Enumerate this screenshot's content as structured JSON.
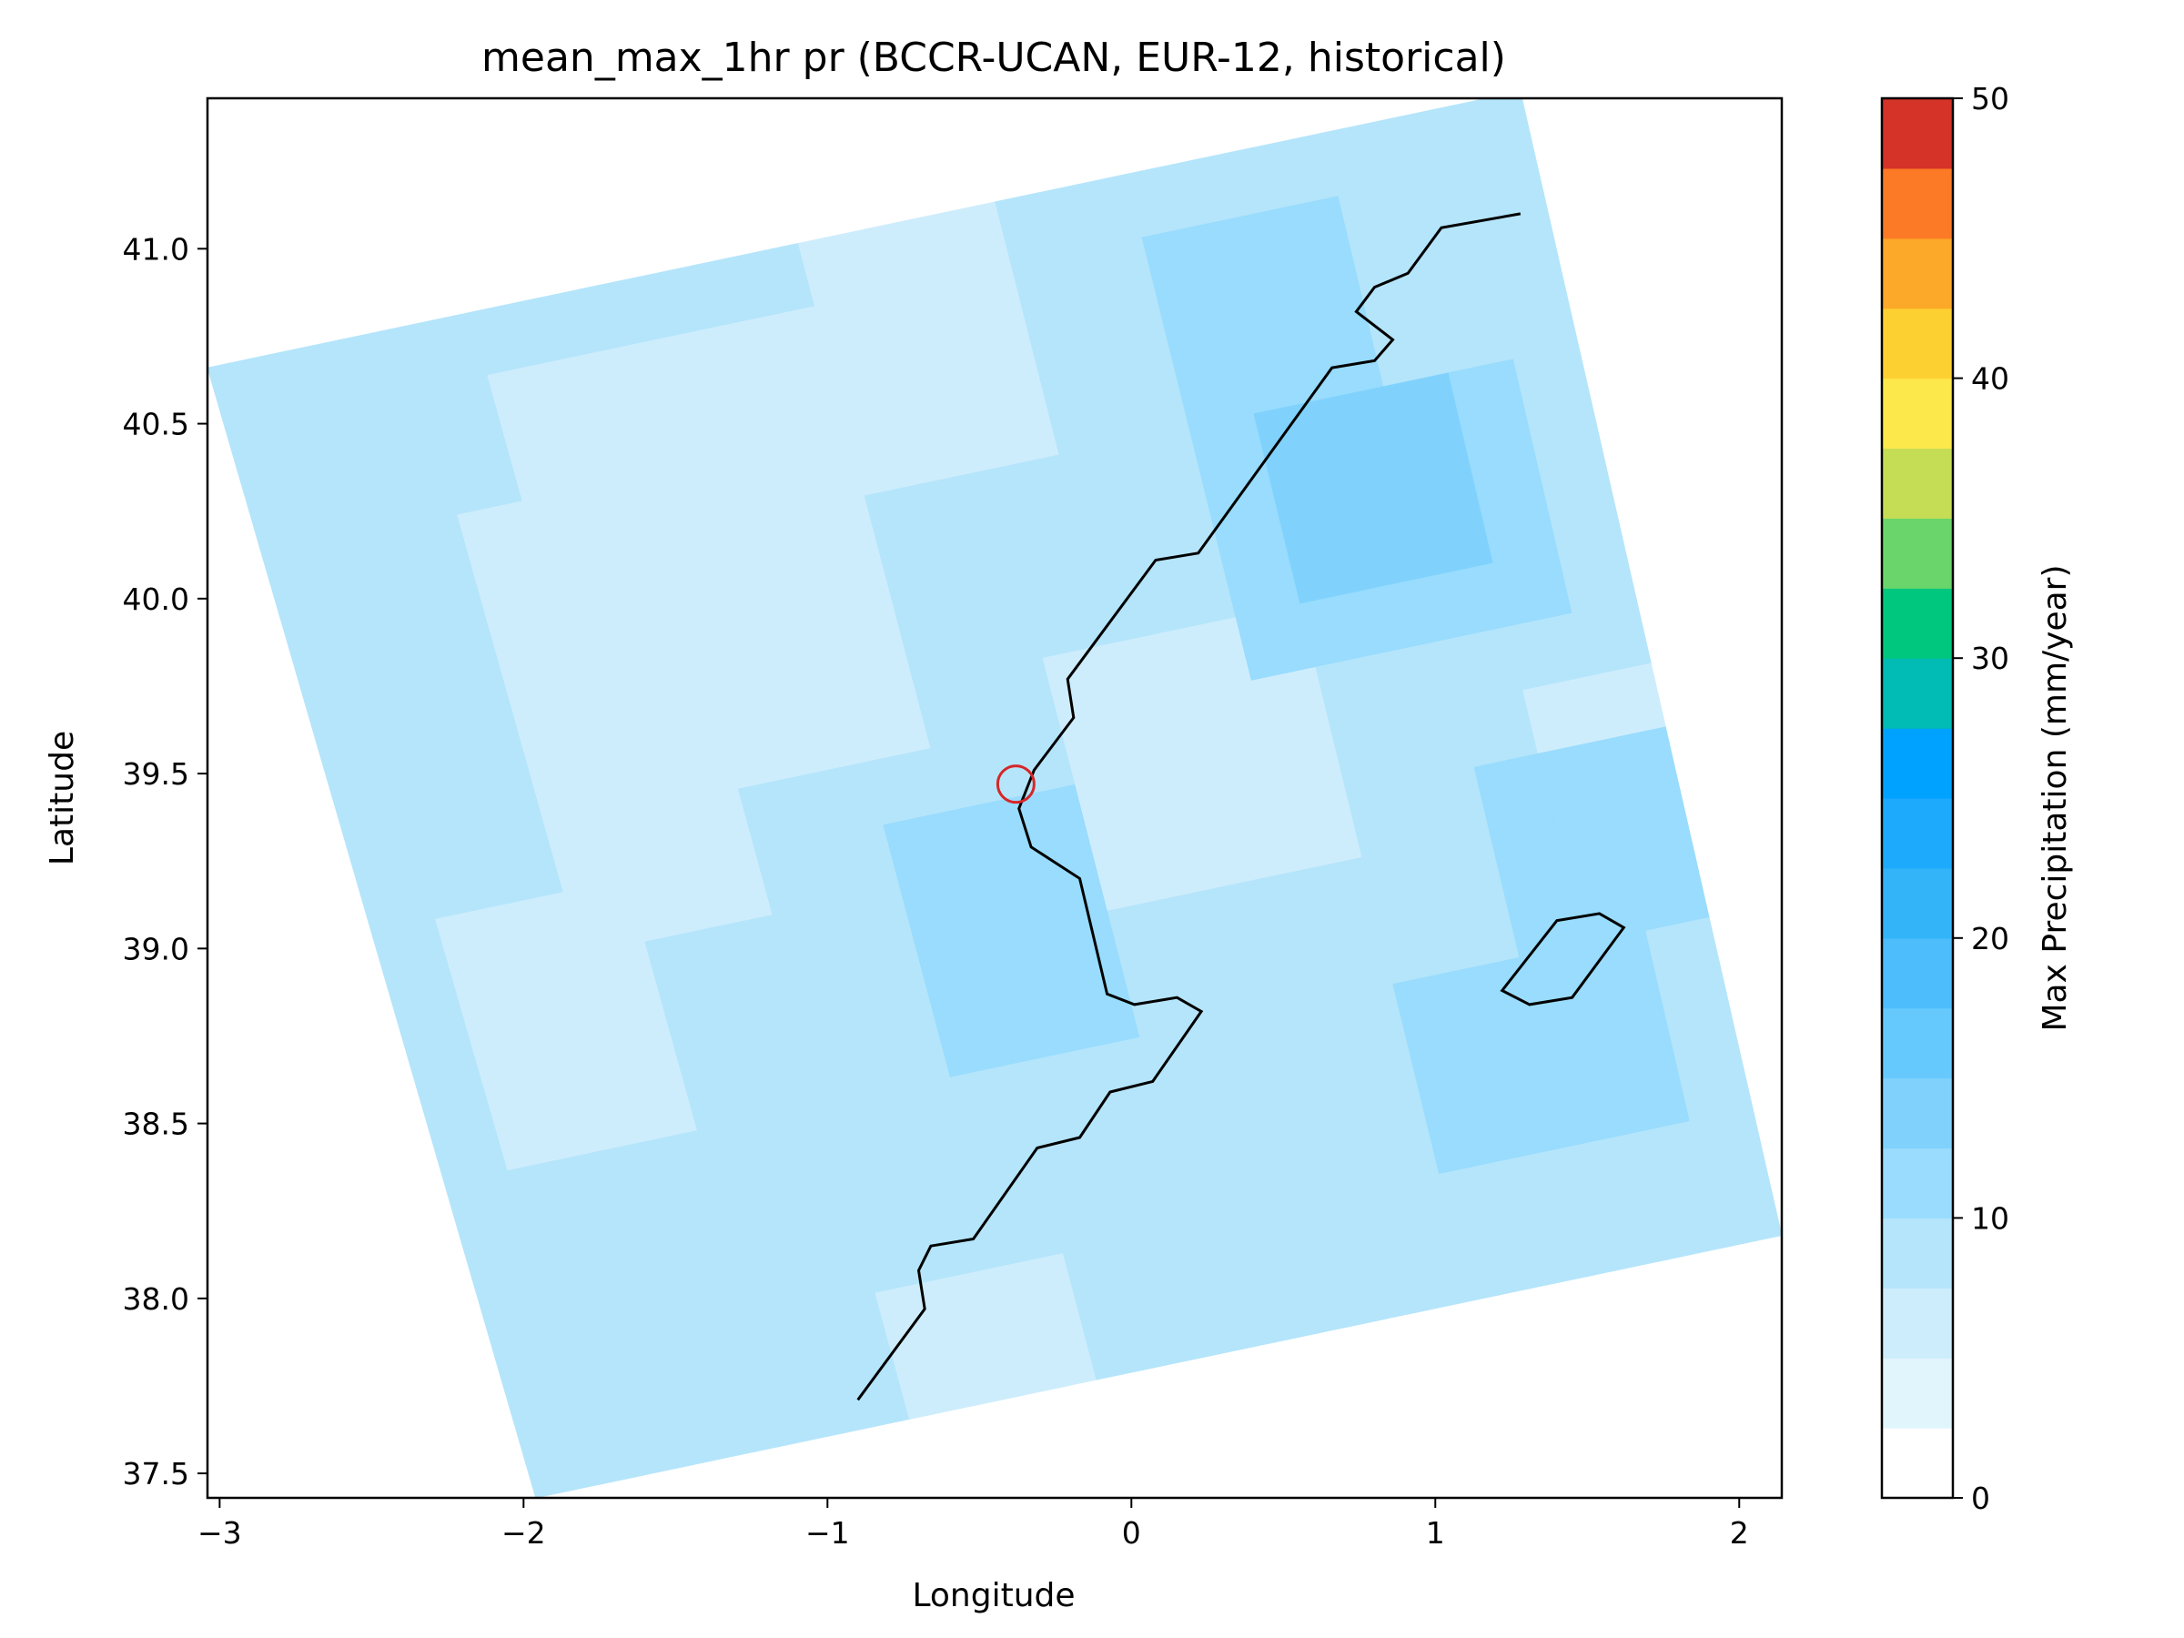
{
  "chart_data": {
    "type": "heatmap",
    "title": "mean_max_1hr pr (BCCR-UCAN, EUR-12, historical)",
    "xlabel": "Longitude",
    "ylabel": "Latitude",
    "xlim": [
      -3.04,
      2.14
    ],
    "ylim": [
      37.43,
      41.43
    ],
    "xticks": [
      -3,
      -2,
      -1,
      0,
      1,
      2
    ],
    "xtick_labels": [
      "−3",
      "−2",
      "−1",
      "0",
      "1",
      "2"
    ],
    "yticks": [
      37.5,
      38.0,
      38.5,
      39.0,
      39.5,
      40.0,
      40.5,
      41.0
    ],
    "ytick_labels": [
      "37.5",
      "38.0",
      "38.5",
      "39.0",
      "39.5",
      "40.0",
      "40.5",
      "41.0"
    ],
    "grid": false,
    "domain_corners": {
      "upper_left": [
        -3.04,
        40.66
      ],
      "upper_right": [
        1.28,
        41.45
      ],
      "lower_right": [
        2.14,
        38.18
      ],
      "lower_left": [
        -1.96,
        37.43
      ]
    },
    "grid_size": [
      18,
      20
    ],
    "base_value": 9,
    "value_regions": [
      {
        "value": 6.5,
        "rows": [
          1,
          7
        ],
        "cols": [
          4,
          8
        ]
      },
      {
        "value": 6.5,
        "rows": [
          3,
          9
        ],
        "cols": [
          3,
          5
        ]
      },
      {
        "value": 6.5,
        "rows": [
          0,
          3
        ],
        "cols": [
          9,
          11
        ]
      },
      {
        "value": 6.5,
        "rows": [
          7,
          10
        ],
        "cols": [
          11,
          14
        ]
      },
      {
        "value": 6.5,
        "rows": [
          9,
          12
        ],
        "cols": [
          1,
          3
        ]
      },
      {
        "value": 6.5,
        "rows": [
          16,
          17
        ],
        "cols": [
          6,
          8
        ]
      },
      {
        "value": 6.5,
        "rows": [
          9,
          10
        ],
        "cols": [
          18,
          19
        ]
      },
      {
        "value": 12,
        "rows": [
          4,
          7
        ],
        "cols": [
          14,
          18
        ]
      },
      {
        "value": 12,
        "rows": [
          9,
          12
        ],
        "cols": [
          8,
          10
        ]
      },
      {
        "value": 12,
        "rows": [
          1,
          3
        ],
        "cols": [
          14,
          16
        ]
      },
      {
        "value": 12,
        "rows": [
          13,
          15
        ],
        "cols": [
          15,
          18
        ]
      },
      {
        "value": 12,
        "rows": [
          10,
          12
        ],
        "cols": [
          17,
          19
        ]
      },
      {
        "value": 14,
        "rows": [
          4,
          6
        ],
        "cols": [
          15,
          17
        ]
      }
    ],
    "coastline": [
      [
        -0.9,
        37.71
      ],
      [
        -0.68,
        37.97
      ],
      [
        -0.7,
        38.08
      ],
      [
        -0.66,
        38.15
      ],
      [
        -0.52,
        38.17
      ],
      [
        -0.31,
        38.43
      ],
      [
        -0.17,
        38.46
      ],
      [
        -0.07,
        38.59
      ],
      [
        0.07,
        38.62
      ],
      [
        0.23,
        38.82
      ],
      [
        0.15,
        38.86
      ],
      [
        0.01,
        38.84
      ],
      [
        -0.08,
        38.87
      ],
      [
        -0.17,
        39.2
      ],
      [
        -0.33,
        39.29
      ],
      [
        -0.37,
        39.4
      ],
      [
        -0.32,
        39.51
      ],
      [
        -0.19,
        39.66
      ],
      [
        -0.21,
        39.77
      ],
      [
        0.08,
        40.11
      ],
      [
        0.22,
        40.13
      ],
      [
        0.66,
        40.66
      ],
      [
        0.8,
        40.68
      ],
      [
        0.86,
        40.74
      ],
      [
        0.74,
        40.82
      ],
      [
        0.8,
        40.89
      ],
      [
        0.91,
        40.93
      ],
      [
        1.02,
        41.06
      ],
      [
        1.28,
        41.1
      ]
    ],
    "island_outline": [
      [
        1.22,
        38.88
      ],
      [
        1.4,
        39.08
      ],
      [
        1.54,
        39.1
      ],
      [
        1.62,
        39.06
      ],
      [
        1.45,
        38.86
      ],
      [
        1.31,
        38.84
      ],
      [
        1.22,
        38.88
      ]
    ],
    "marker": {
      "lon": -0.38,
      "lat": 39.47,
      "shape": "open-circle",
      "color": "#d62728"
    },
    "colorbar": {
      "label": "Max Precipitation (mm/year)",
      "vmin": 0,
      "vmax": 50,
      "ticks": [
        0,
        10,
        20,
        30,
        40,
        50
      ],
      "tick_labels": [
        "0",
        "10",
        "20",
        "30",
        "40",
        "50"
      ],
      "bin_edges": [
        0,
        2.5,
        5,
        7.5,
        10,
        12.5,
        15,
        17.5,
        20,
        22.5,
        25,
        27.5,
        30,
        32.5,
        35,
        37.5,
        40,
        42.5,
        45,
        47.5,
        50
      ],
      "colors": [
        "#ffffff",
        "#e1f5fc",
        "#ceedfc",
        "#b5e5fb",
        "#99dcfd",
        "#80d2fd",
        "#66c9fd",
        "#4dbdfb",
        "#33b4f9",
        "#1daafc",
        "#00a2ff",
        "#00bcb4",
        "#00c77e",
        "#6ad56a",
        "#c4dd55",
        "#fde84c",
        "#fdd032",
        "#fca828",
        "#fc7a25",
        "#d53228"
      ]
    }
  }
}
